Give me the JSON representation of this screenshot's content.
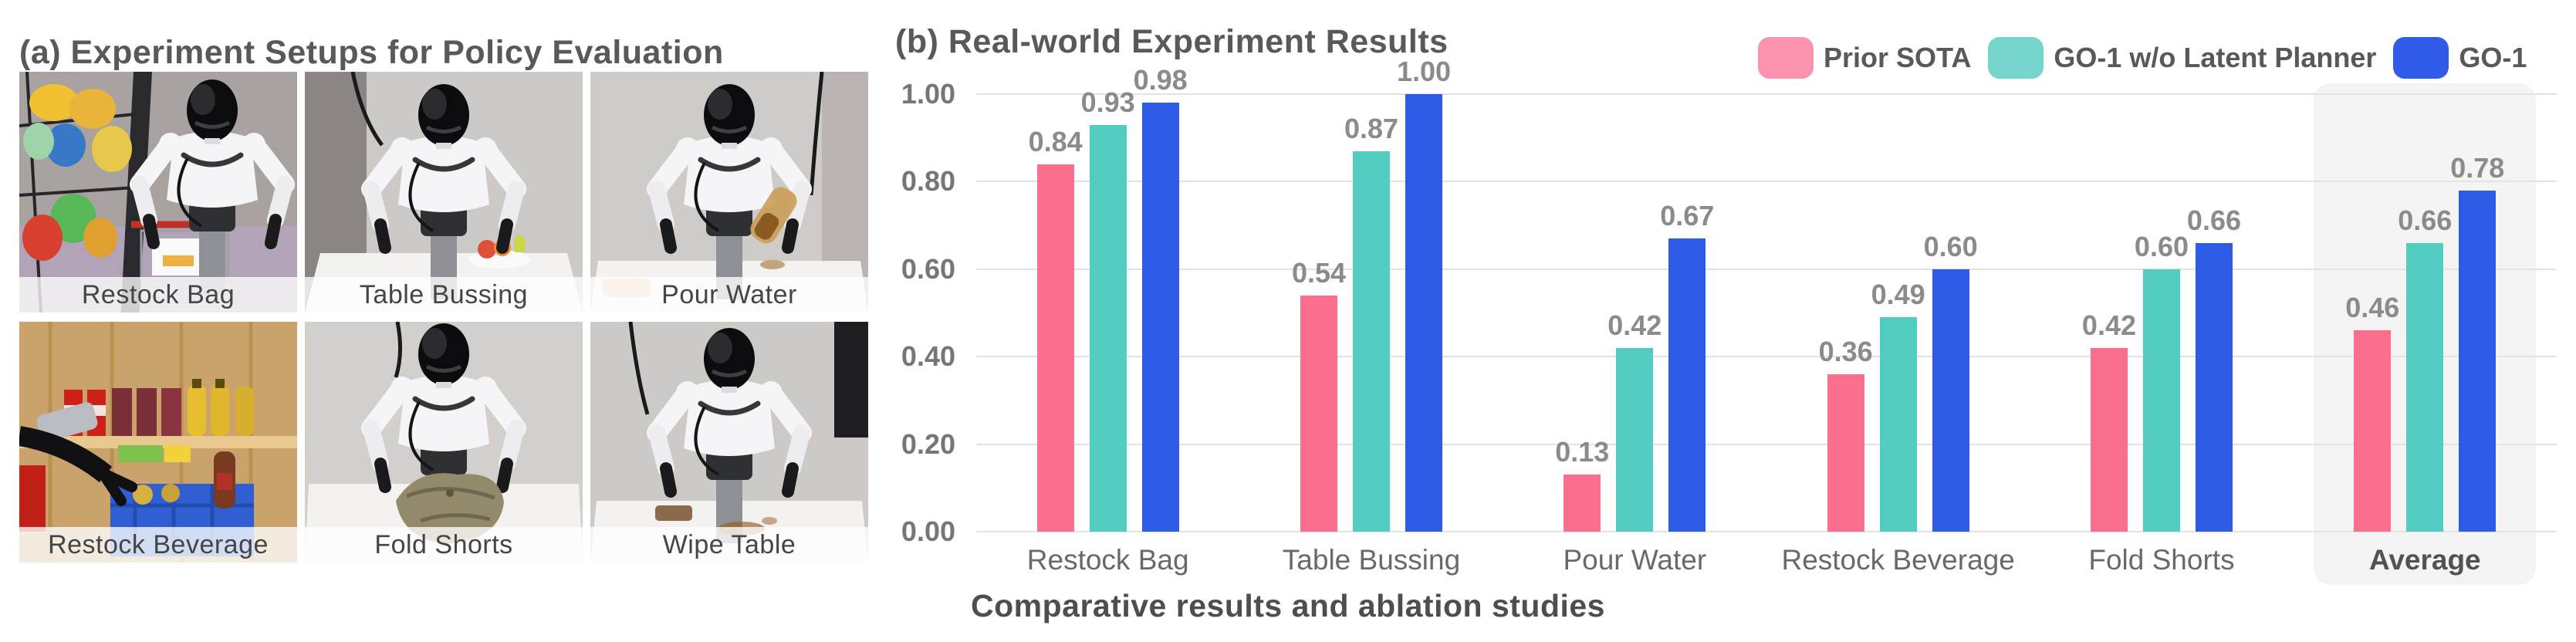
{
  "panel_a": {
    "title": "(a) Experiment Setups for Policy Evaluation",
    "setups": [
      {
        "label": "Restock Bag"
      },
      {
        "label": "Table Bussing"
      },
      {
        "label": "Pour Water"
      },
      {
        "label": "Restock Beverage"
      },
      {
        "label": "Fold Shorts"
      },
      {
        "label": "Wipe Table"
      }
    ]
  },
  "panel_b": {
    "title": "(b) Real-world Experiment Results",
    "caption": "Comparative results and ablation studies"
  },
  "chart_data": {
    "type": "bar",
    "title": "(b) Real-world Experiment Results",
    "categories": [
      "Restock Bag",
      "Table Bussing",
      "Pour Water",
      "Restock Beverage",
      "Fold Shorts",
      "Average"
    ],
    "series": [
      {
        "name": "Prior SOTA",
        "color": "#FB6E8D",
        "legend_color": "#FA93AE",
        "values": [
          0.84,
          0.54,
          0.13,
          0.36,
          0.42,
          0.46
        ]
      },
      {
        "name": "GO-1 w/o Latent Planner",
        "color": "#53CCC2",
        "legend_color": "#76D6CD",
        "values": [
          0.93,
          0.87,
          0.42,
          0.49,
          0.6,
          0.66
        ]
      },
      {
        "name": "GO-1",
        "color": "#2E5BE6",
        "legend_color": "#2F5BE8",
        "values": [
          0.98,
          1.0,
          0.67,
          0.6,
          0.66,
          0.78
        ]
      }
    ],
    "ylim": [
      0,
      1.0
    ],
    "yticks": [
      0.0,
      0.2,
      0.4,
      0.6,
      0.8,
      1.0
    ],
    "ytick_format": "2dp",
    "grid": true,
    "legend_position": "top-right",
    "value_labels": true,
    "highlighted_category": "Average",
    "highlight_color": "#f4f4f5",
    "xlabel": "",
    "ylabel": ""
  }
}
